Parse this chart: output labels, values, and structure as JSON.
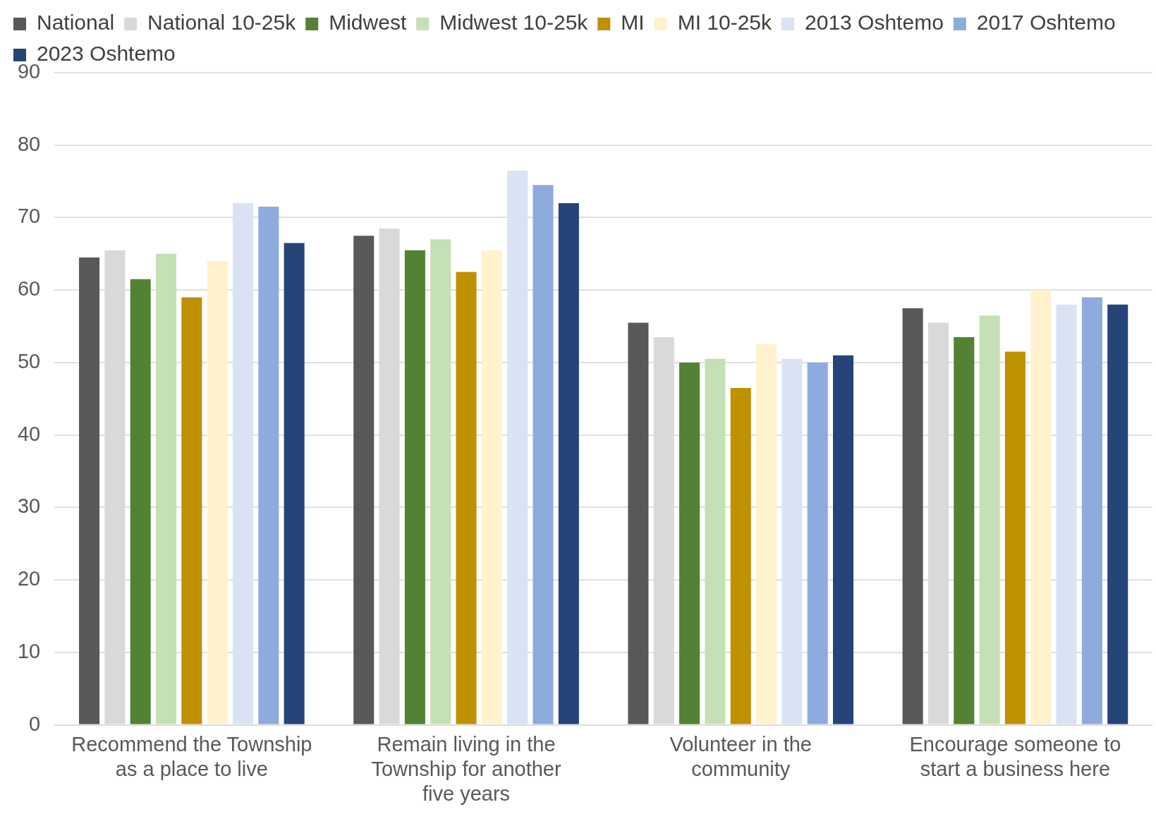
{
  "chart_data": {
    "type": "bar",
    "categories": [
      "Recommend the Township as a place to live",
      "Remain living in the Township for another five years",
      "Volunteer in the community",
      "Encourage someone to start a business here"
    ],
    "series": [
      {
        "name": "National",
        "color": "#595959",
        "values": [
          64.5,
          67.5,
          55.5,
          57.5
        ]
      },
      {
        "name": "National 10-25k",
        "color": "#d9d9d9",
        "values": [
          65.5,
          68.5,
          53.5,
          55.5
        ]
      },
      {
        "name": "Midwest",
        "color": "#548235",
        "values": [
          61.5,
          65.5,
          50,
          53.5
        ]
      },
      {
        "name": "Midwest 10-25k",
        "color": "#c5e0b4",
        "values": [
          65,
          67,
          50.5,
          56.5
        ]
      },
      {
        "name": "MI",
        "color": "#bf9000",
        "values": [
          59,
          62.5,
          46.5,
          51.5
        ]
      },
      {
        "name": "MI 10-25k",
        "color": "#fff2cc",
        "values": [
          64,
          65.5,
          52.5,
          60
        ]
      },
      {
        "name": "2013 Oshtemo",
        "color": "#dae3f3",
        "values": [
          72,
          76.5,
          50.5,
          58
        ]
      },
      {
        "name": "2017 Oshtemo",
        "color": "#8faadc",
        "values": [
          71.5,
          74.5,
          50,
          59
        ]
      },
      {
        "name": "2023 Oshtemo",
        "color": "#264478",
        "values": [
          66.5,
          72,
          51,
          58
        ]
      }
    ],
    "ylim": [
      0,
      90
    ],
    "yticks": [
      0,
      10,
      20,
      30,
      40,
      50,
      60,
      70,
      80,
      90
    ],
    "grid": "y",
    "legend": "top"
  }
}
